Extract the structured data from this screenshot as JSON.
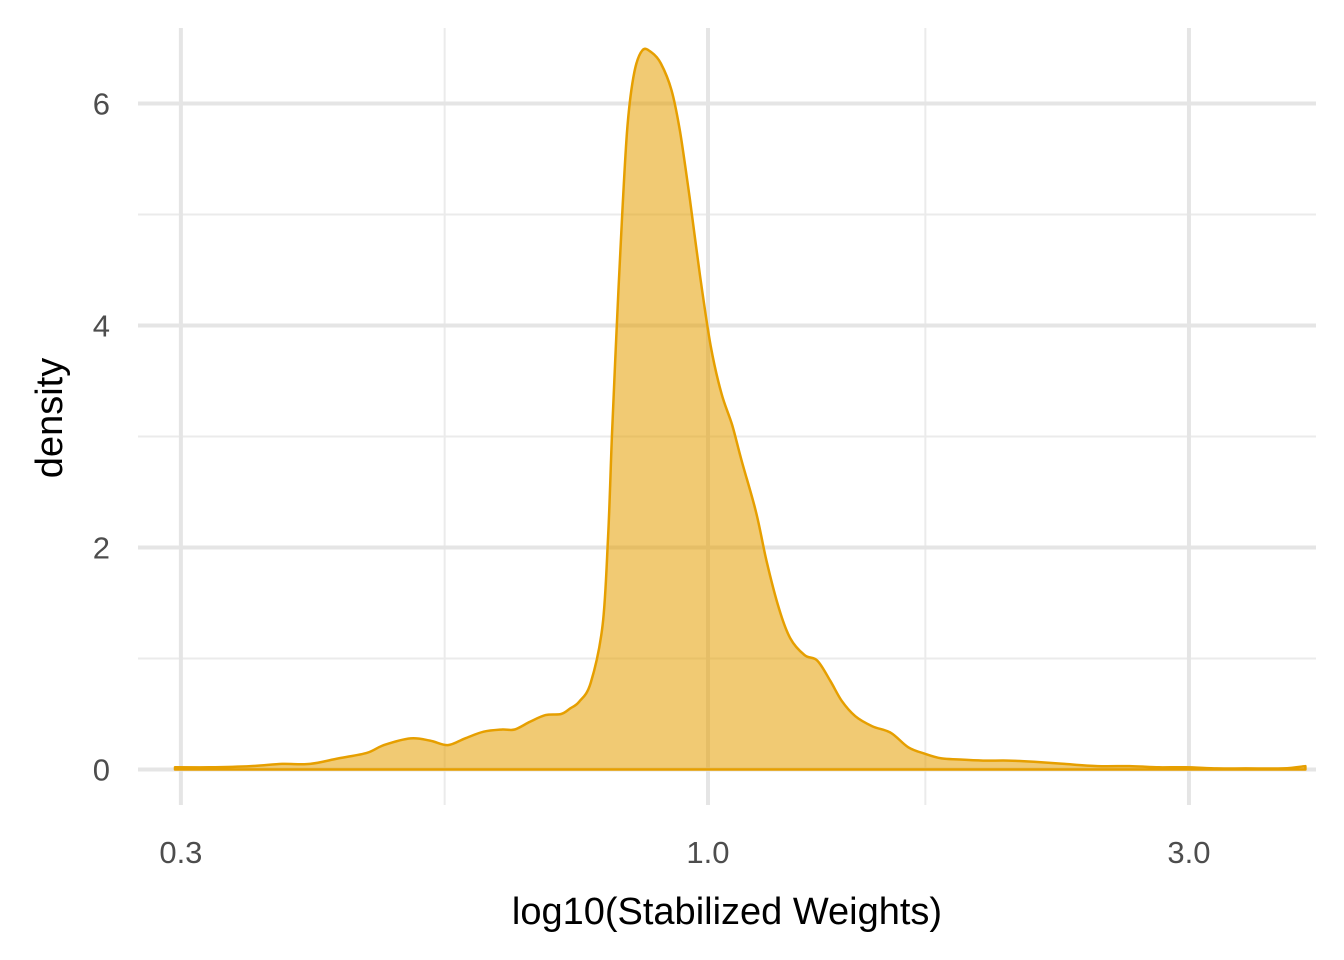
{
  "chart_data": {
    "type": "area",
    "subtype": "density",
    "xlabel": "log10(Stabilized Weights)",
    "ylabel": "density",
    "x_scale": "log10",
    "xlim": [
      0.272,
      4.01
    ],
    "ylim": [
      -0.32,
      6.68
    ],
    "x_ticks": [
      0.3,
      1.0,
      3.0
    ],
    "x_tick_labels": [
      "0.3",
      "1.0",
      "3.0"
    ],
    "x_minor_ticks": [
      0.548,
      1.643
    ],
    "y_ticks": [
      0,
      2,
      4,
      6
    ],
    "y_tick_labels": [
      "0",
      "2",
      "4",
      "6"
    ],
    "y_minor_ticks": [
      1,
      3,
      5
    ],
    "grid": true,
    "legend": "none",
    "fill_color": "#E69F00",
    "fill_opacity": 0.55,
    "line_color": "#E69F00",
    "series": [
      {
        "x": [
          0.296,
          0.32,
          0.352,
          0.378,
          0.403,
          0.43,
          0.459,
          0.477,
          0.507,
          0.53,
          0.552,
          0.574,
          0.599,
          0.625,
          0.643,
          0.666,
          0.69,
          0.715,
          0.73,
          0.745,
          0.765,
          0.786,
          0.796,
          0.803,
          0.812,
          0.822,
          0.832,
          0.845,
          0.861,
          0.879,
          0.898,
          0.92,
          0.938,
          0.959,
          0.982,
          1.006,
          1.031,
          1.057,
          1.08,
          1.116,
          1.143,
          1.176,
          1.207,
          1.247,
          1.284,
          1.322,
          1.357,
          1.4,
          1.455,
          1.519,
          1.58,
          1.643,
          1.705,
          1.776,
          1.874,
          1.986,
          2.105,
          2.258,
          2.434,
          2.62,
          2.8,
          2.976,
          3.197,
          3.416,
          3.72,
          3.914
        ],
        "y": [
          0.02,
          0.02,
          0.03,
          0.05,
          0.05,
          0.1,
          0.15,
          0.22,
          0.28,
          0.26,
          0.22,
          0.28,
          0.34,
          0.36,
          0.36,
          0.43,
          0.49,
          0.5,
          0.55,
          0.61,
          0.78,
          1.3,
          2.1,
          3.0,
          4.0,
          5.0,
          5.8,
          6.28,
          6.48,
          6.46,
          6.36,
          6.12,
          5.75,
          5.15,
          4.45,
          3.82,
          3.39,
          3.1,
          2.78,
          2.32,
          1.88,
          1.45,
          1.18,
          1.03,
          0.98,
          0.8,
          0.62,
          0.48,
          0.39,
          0.33,
          0.2,
          0.14,
          0.1,
          0.09,
          0.08,
          0.08,
          0.07,
          0.05,
          0.03,
          0.03,
          0.02,
          0.02,
          0.01,
          0.01,
          0.01,
          0.03
        ]
      }
    ]
  }
}
